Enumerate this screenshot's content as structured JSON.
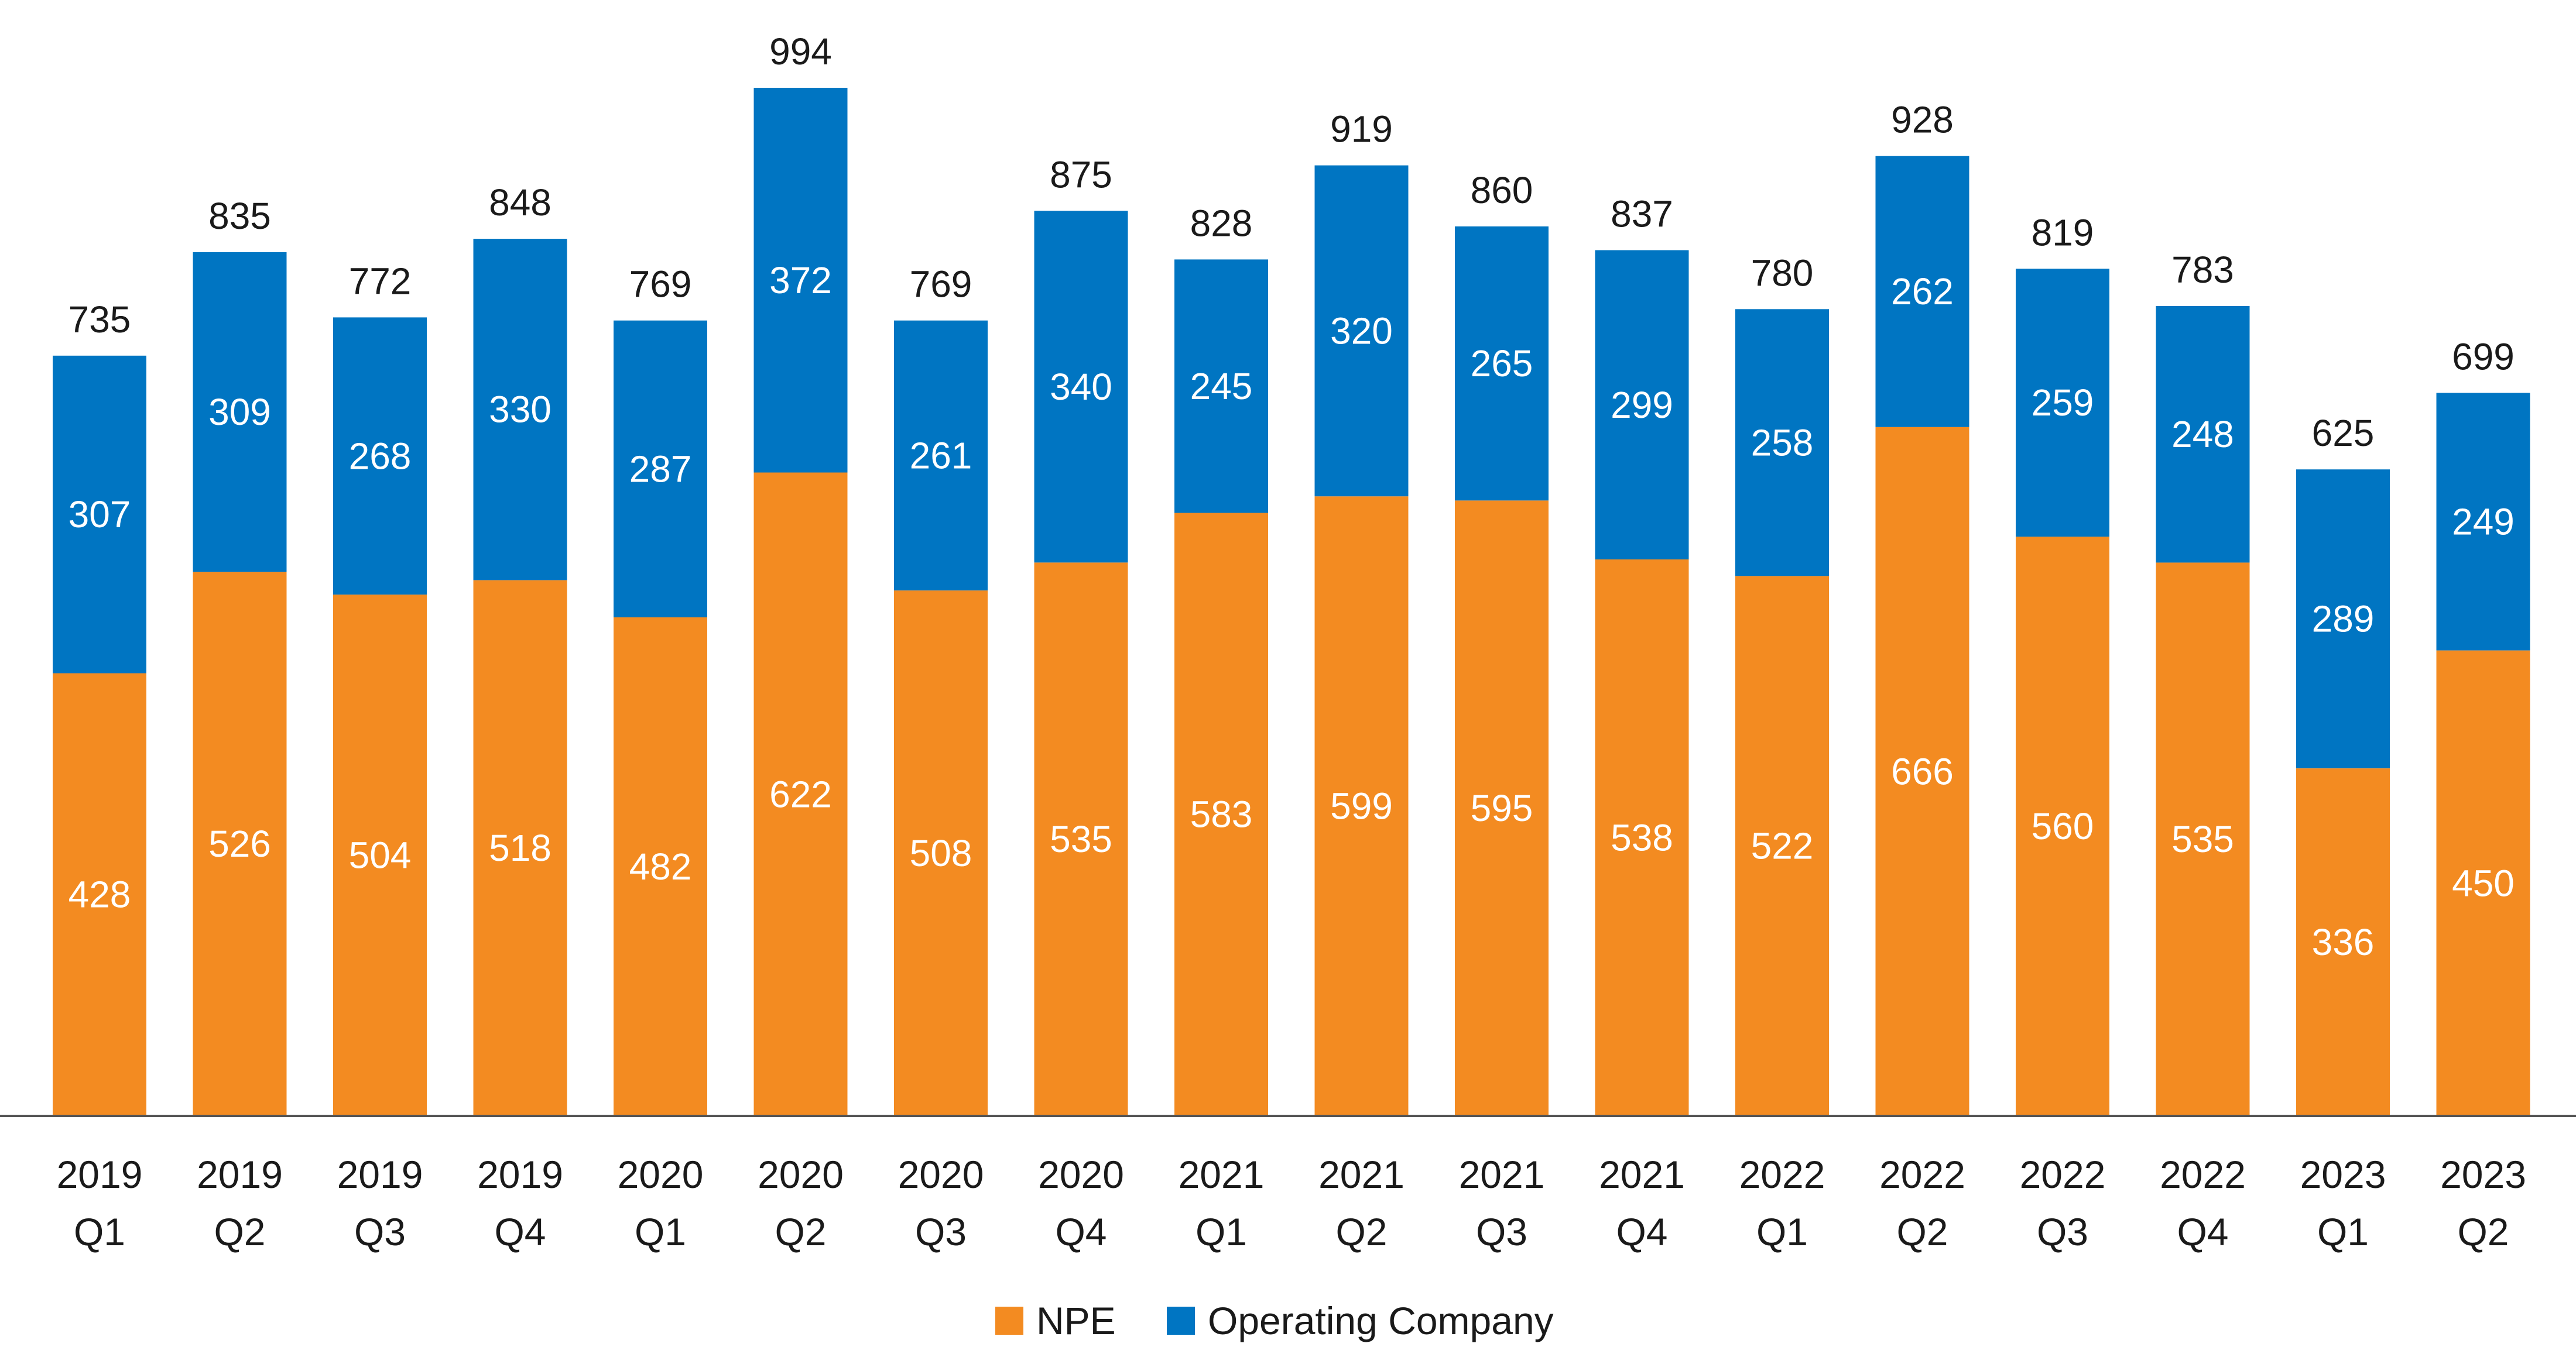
{
  "chart_data": {
    "type": "bar",
    "stacked": true,
    "categories": [
      [
        "2019",
        "Q1"
      ],
      [
        "2019",
        "Q2"
      ],
      [
        "2019",
        "Q3"
      ],
      [
        "2019",
        "Q4"
      ],
      [
        "2020",
        "Q1"
      ],
      [
        "2020",
        "Q2"
      ],
      [
        "2020",
        "Q3"
      ],
      [
        "2020",
        "Q4"
      ],
      [
        "2021",
        "Q1"
      ],
      [
        "2021",
        "Q2"
      ],
      [
        "2021",
        "Q3"
      ],
      [
        "2021",
        "Q4"
      ],
      [
        "2022",
        "Q1"
      ],
      [
        "2022",
        "Q2"
      ],
      [
        "2022",
        "Q3"
      ],
      [
        "2022",
        "Q4"
      ],
      [
        "2023",
        "Q1"
      ],
      [
        "2023",
        "Q2"
      ]
    ],
    "series": [
      {
        "name": "NPE",
        "color": "#F38B21",
        "values": [
          428,
          526,
          504,
          518,
          482,
          622,
          508,
          535,
          583,
          599,
          595,
          538,
          522,
          666,
          560,
          535,
          336,
          450
        ]
      },
      {
        "name": "Operating Company",
        "color": "#0075C2",
        "values": [
          307,
          309,
          268,
          330,
          287,
          372,
          261,
          340,
          245,
          320,
          265,
          299,
          258,
          262,
          259,
          248,
          289,
          249
        ]
      }
    ],
    "totals": [
      735,
      835,
      772,
      848,
      769,
      994,
      769,
      875,
      828,
      919,
      860,
      837,
      780,
      928,
      819,
      783,
      625,
      699
    ],
    "title": "",
    "xlabel": "",
    "ylabel": "",
    "ylim": [
      0,
      1000
    ],
    "grid": false,
    "legend": "bottom-center"
  }
}
